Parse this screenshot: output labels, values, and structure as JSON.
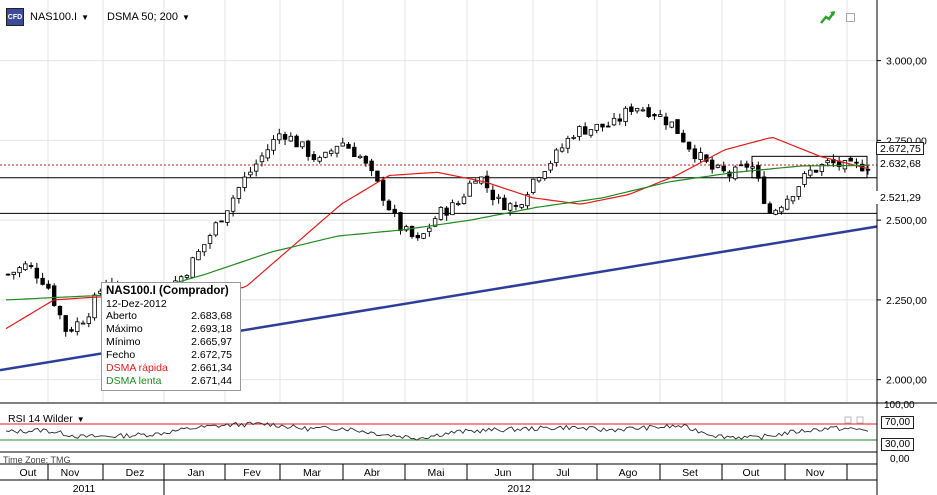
{
  "header": {
    "symbol": "NAS100.I",
    "indicator": "DSMA 50; 200",
    "symbol_icon": "cfd-icon",
    "trend_icon": "trend-up-icon"
  },
  "tooltip": {
    "title": "NAS100.I (Comprador)",
    "date": "12-Dez-2012",
    "rows": [
      {
        "label": "Aberto",
        "value": "2.683,68"
      },
      {
        "label": "Máximo",
        "value": "2.693,18"
      },
      {
        "label": "Mínimo",
        "value": "2.665,97"
      },
      {
        "label": "Fecho",
        "value": "2.672,75"
      },
      {
        "label": "DSMA rápida",
        "value": "2.661,34"
      },
      {
        "label": "DSMA lenta",
        "value": "2.671,44"
      }
    ]
  },
  "rsi": {
    "label": "RSI 14 Wilder",
    "axis_labels": [
      "100,00",
      "70,00",
      "30,00",
      "0,00"
    ]
  },
  "time_zone": "Time Zone: TMG",
  "colors": {
    "up": "#ffffff",
    "down": "#000000",
    "fast_ma": "#e31b1b",
    "slow_ma": "#1f8a1f",
    "trendline": "#2d3e9a",
    "grid": "#e4e4e4"
  },
  "chart_data": {
    "type": "candlestick",
    "title": "NAS100.I",
    "y_axis_labels": [
      "3.000,00",
      "2.750,00",
      "2.500,00",
      "2.250,00",
      "2.000,00"
    ],
    "y_ticks": [
      3000,
      2750,
      2500,
      2250,
      2000
    ],
    "ylim": [
      1930,
      3190
    ],
    "x_month_labels": [
      "Out",
      "Nov",
      "Dez",
      "Jan",
      "Fev",
      "Mar",
      "Abr",
      "Mai",
      "Jun",
      "Jul",
      "Ago",
      "Set",
      "Out",
      "Nov"
    ],
    "x_year_labels": [
      "2011",
      "2012"
    ],
    "horizontal_levels": [
      {
        "value": 2672.75,
        "label": "2.672,75",
        "style": "dotted-red"
      },
      {
        "value": 2632.68,
        "label": "2.632,68",
        "style": "solid-black"
      },
      {
        "value": 2521.29,
        "label": "2.521,29",
        "style": "solid-black"
      }
    ],
    "trendline": {
      "start": 2030,
      "end": 2480
    },
    "close_anchors": [
      2330,
      2360,
      2300,
      2150,
      2200,
      2310,
      2260,
      2250,
      2280,
      2330,
      2420,
      2520,
      2620,
      2700,
      2780,
      2730,
      2680,
      2750,
      2700,
      2600,
      2480,
      2430,
      2520,
      2550,
      2650,
      2560,
      2540,
      2640,
      2700,
      2780,
      2790,
      2800,
      2860,
      2840,
      2800,
      2720,
      2660,
      2640,
      2680,
      2520,
      2580,
      2650,
      2680,
      2665,
      2672.75
    ],
    "fast_ma_anchors": [
      2160,
      2250,
      2260,
      2250,
      2270,
      2290,
      2420,
      2550,
      2640,
      2650,
      2620,
      2570,
      2550,
      2580,
      2640,
      2720,
      2760,
      2700,
      2661.34
    ],
    "slow_ma_anchors": [
      2250,
      2260,
      2270,
      2330,
      2400,
      2450,
      2470,
      2500,
      2540,
      2570,
      2620,
      2650,
      2670,
      2671.44
    ],
    "rsi_anchors": [
      50,
      55,
      38,
      40,
      45,
      60,
      68,
      70,
      58,
      60,
      45,
      35,
      50,
      55,
      58,
      62,
      55,
      60,
      65,
      40,
      35,
      50,
      60,
      55
    ]
  }
}
